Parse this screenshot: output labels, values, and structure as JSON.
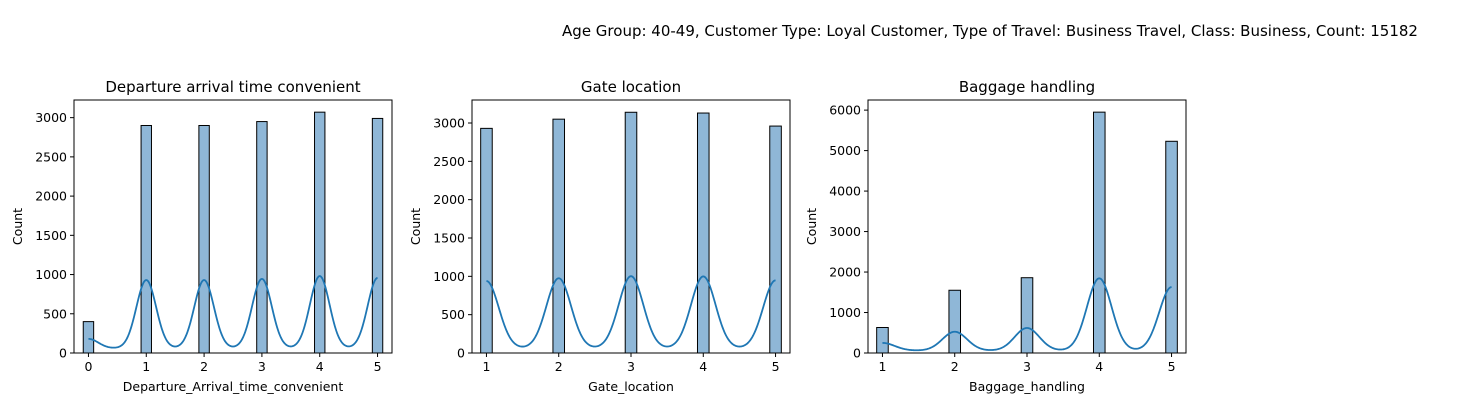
{
  "figure": {
    "suptitle": "Age Group: 40-49, Customer Type: Loyal Customer, Type of Travel: Business Travel, Class: Business, Count: 15182",
    "kde_color": "#1f77b4",
    "bar_color": "#8fb7d7"
  },
  "chart_data": [
    {
      "type": "bar",
      "title": "Departure arrival time convenient",
      "xlabel": "Departure_Arrival_time_convenient",
      "ylabel": "Count",
      "categories": [
        0,
        1,
        2,
        3,
        4,
        5
      ],
      "values": [
        400,
        2900,
        2900,
        2950,
        3070,
        2990
      ],
      "xlim": [
        -0.25,
        5.25
      ],
      "ylim": [
        0,
        3225
      ],
      "xticks": [
        0,
        1,
        2,
        3,
        4,
        5
      ],
      "yticks": [
        0,
        500,
        1000,
        1500,
        2000,
        2500,
        3000
      ],
      "kde": true
    },
    {
      "type": "bar",
      "title": "Gate location",
      "xlabel": "Gate_location",
      "ylabel": "Count",
      "categories": [
        1,
        2,
        3,
        4,
        5
      ],
      "values": [
        2930,
        3050,
        3140,
        3130,
        2960
      ],
      "xlim": [
        0.8,
        5.2
      ],
      "ylim": [
        0,
        3300
      ],
      "xticks": [
        1,
        2,
        3,
        4,
        5
      ],
      "yticks": [
        0,
        500,
        1000,
        1500,
        2000,
        2500,
        3000
      ],
      "kde": true
    },
    {
      "type": "bar",
      "title": "Baggage handling",
      "xlabel": "Baggage_handling",
      "ylabel": "Count",
      "categories": [
        1,
        2,
        3,
        4,
        5
      ],
      "values": [
        630,
        1550,
        1860,
        5950,
        5230
      ],
      "xlim": [
        0.8,
        5.2
      ],
      "ylim": [
        0,
        6250
      ],
      "xticks": [
        1,
        2,
        3,
        4,
        5
      ],
      "yticks": [
        0,
        1000,
        2000,
        3000,
        4000,
        5000,
        6000
      ],
      "kde": true
    }
  ]
}
